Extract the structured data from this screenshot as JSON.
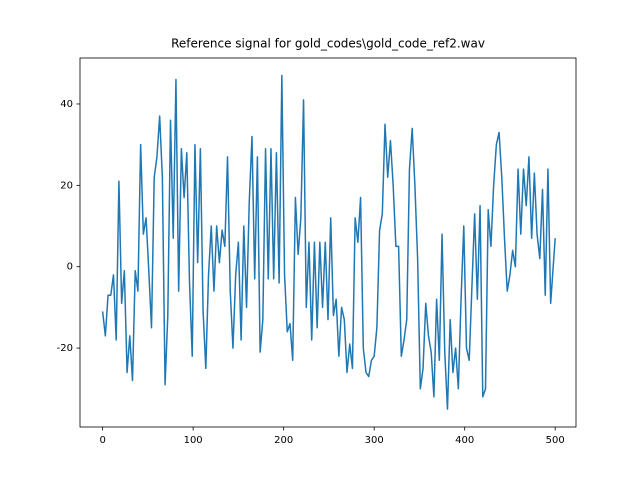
{
  "chart_data": {
    "type": "line",
    "title": "Reference signal for gold_codes\\gold_code_ref2.wav",
    "x": [
      0,
      3,
      6,
      9,
      12,
      15,
      18,
      21,
      24,
      27,
      30,
      33,
      36,
      39,
      42,
      45,
      48,
      51,
      54,
      57,
      60,
      63,
      66,
      69,
      72,
      75,
      78,
      81,
      84,
      87,
      90,
      93,
      96,
      99,
      102,
      105,
      108,
      111,
      114,
      117,
      120,
      123,
      126,
      129,
      132,
      135,
      138,
      141,
      144,
      147,
      150,
      153,
      156,
      159,
      162,
      165,
      168,
      171,
      174,
      177,
      180,
      183,
      186,
      189,
      192,
      195,
      198,
      201,
      204,
      207,
      210,
      213,
      216,
      219,
      222,
      225,
      228,
      231,
      234,
      237,
      240,
      243,
      246,
      249,
      252,
      255,
      258,
      261,
      264,
      267,
      270,
      273,
      276,
      279,
      282,
      285,
      288,
      291,
      294,
      297,
      300,
      303,
      306,
      309,
      312,
      315,
      318,
      321,
      324,
      327,
      330,
      333,
      336,
      339,
      342,
      345,
      348,
      351,
      354,
      357,
      360,
      363,
      366,
      369,
      372,
      375,
      378,
      381,
      384,
      387,
      390,
      393,
      396,
      399,
      402,
      405,
      408,
      411,
      414,
      417,
      420,
      423,
      426,
      429,
      432,
      435,
      438,
      441,
      444,
      447,
      450,
      453,
      456,
      459,
      462,
      465,
      468,
      471,
      474,
      477,
      480,
      483,
      486,
      489,
      492,
      495,
      500
    ],
    "series": [
      {
        "color": "#1f77b4",
        "values": [
          -11,
          -17,
          -7,
          -7,
          -2,
          -18,
          21,
          -9,
          -1,
          -26,
          -17,
          -28,
          -1,
          -6,
          30,
          8,
          12,
          -1,
          -15,
          22,
          27,
          37,
          22,
          -29,
          -12,
          36,
          7,
          46,
          -6,
          29,
          17,
          28,
          -4,
          -22,
          30,
          1,
          29,
          -11,
          -25,
          -2,
          10,
          -6,
          10,
          1,
          9,
          5,
          27,
          -6,
          -20,
          -2,
          6,
          -18,
          10,
          -10,
          16,
          32,
          -3,
          27,
          -21,
          -13,
          29,
          -3,
          29,
          -3,
          28,
          -4,
          47,
          -2,
          -16,
          -14,
          -23,
          17,
          3,
          12,
          41,
          -10,
          6,
          -18,
          6,
          -15,
          6,
          -10,
          6,
          -13,
          12,
          -12,
          -8,
          -22,
          -10,
          -13,
          -26,
          -19,
          -25,
          12,
          6,
          17,
          -20,
          -26,
          -27,
          -23,
          -22,
          -15,
          9,
          13,
          35,
          22,
          31,
          20,
          5,
          5,
          -22,
          -18,
          -13,
          24,
          34,
          20,
          2,
          -30,
          -25,
          -9,
          -17,
          -21,
          -32,
          -8,
          -23,
          8,
          -21,
          -35,
          -13,
          -26,
          -20,
          -30,
          -8,
          10,
          -20,
          -23,
          -5,
          13,
          -8,
          15,
          -32,
          -30,
          14,
          5,
          20,
          30,
          33,
          22,
          7,
          -6,
          -2,
          4,
          0,
          24,
          8,
          24,
          15,
          27,
          7,
          23,
          8,
          2,
          19,
          -7,
          24,
          -9,
          7
        ]
      }
    ],
    "xlim": [
      -25,
      523
    ],
    "ylim": [
      -39.4,
      51.3
    ],
    "xticks": [
      0,
      100,
      200,
      300,
      400,
      500
    ],
    "yticks": [
      -20,
      0,
      20,
      40
    ],
    "grid": false
  }
}
